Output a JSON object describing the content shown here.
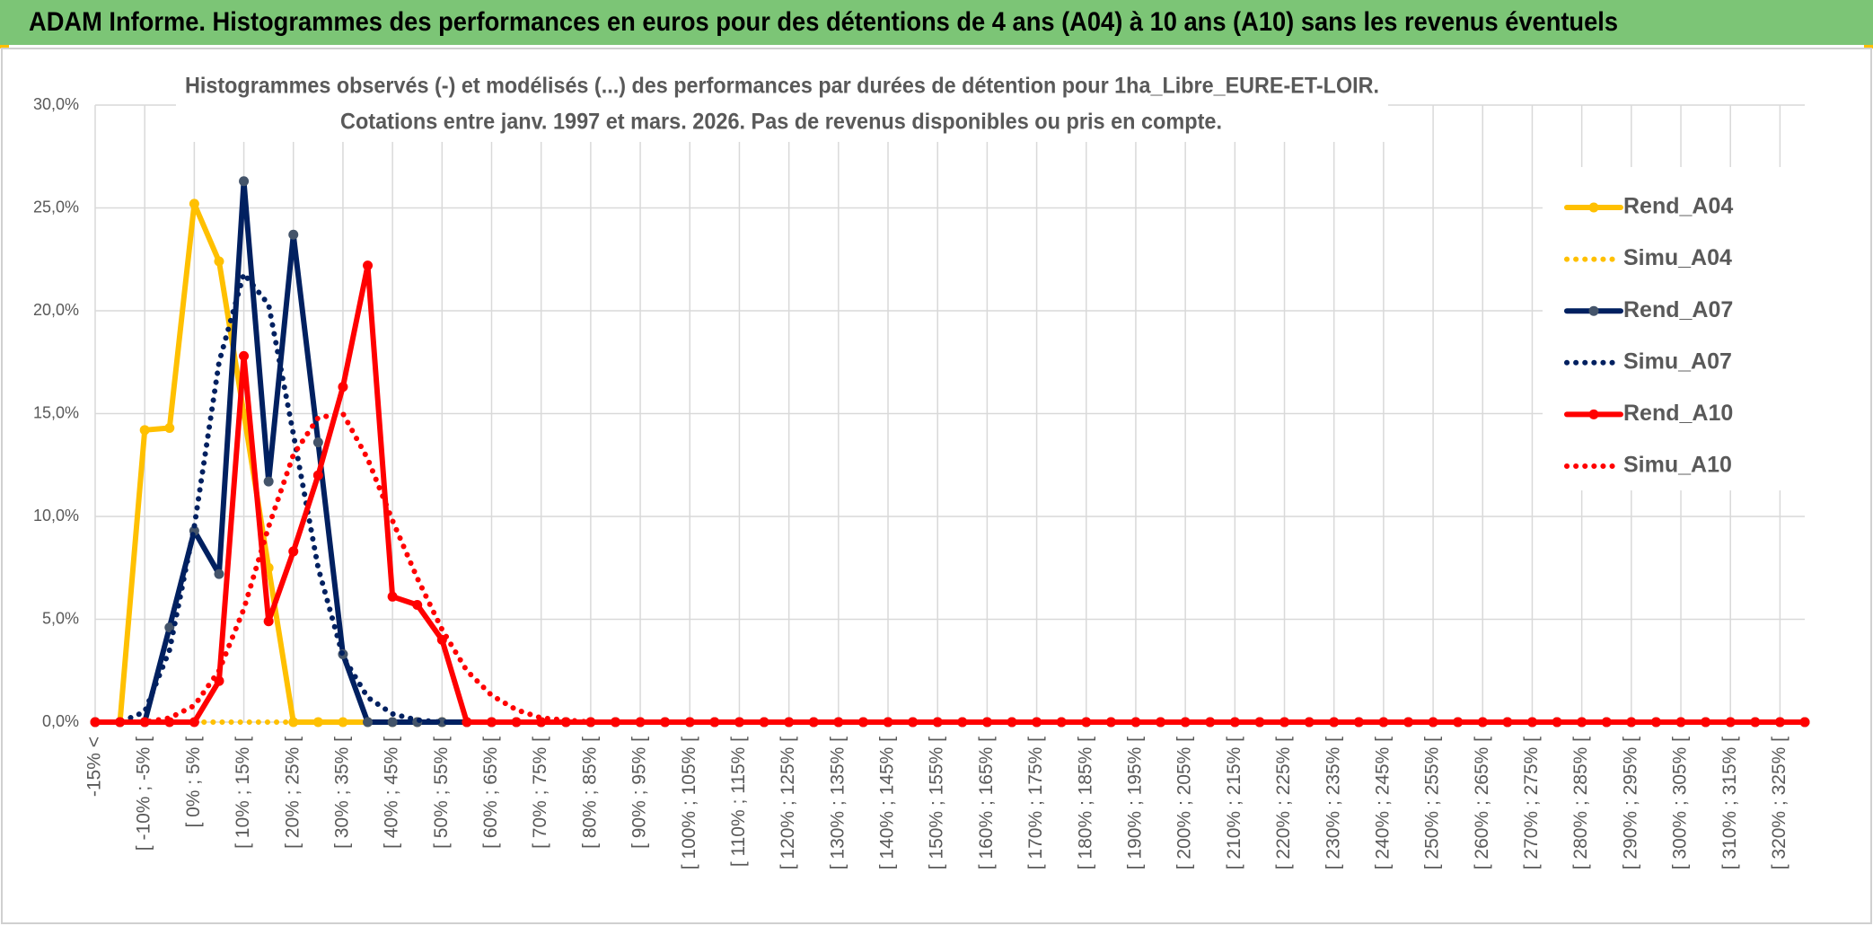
{
  "header": {
    "title": "ADAM Informe. Histogrammes des performances en euros pour des détentions de 4 ans (A04) à 10 ans (A10) sans les revenus éventuels"
  },
  "chart_data": {
    "type": "line",
    "title": [
      "Histogrammes observés (-) et modélisés (...) des performances par durées de détention pour 1ha_Libre_EURE-ET-LOIR.",
      "Cotations entre janv. 1997 et mars. 2026. Pas de revenus disponibles ou pris en compte."
    ],
    "categories": [
      "-15% <",
      null,
      "[ -10% ; -5% [",
      null,
      "[ 0% ; 5% [",
      null,
      "[ 10% ; 15% [",
      null,
      "[ 20% ; 25% [",
      null,
      "[ 30% ; 35% [",
      null,
      "[ 40% ; 45% [",
      null,
      "[ 50% ; 55% [",
      null,
      "[ 60% ; 65% [",
      null,
      "[ 70% ; 75% [",
      null,
      "[ 80% ; 85% [",
      null,
      "[ 90% ; 95% [",
      null,
      "[ 100% ; 105% [",
      null,
      "[ 110% ; 115% [",
      null,
      "[ 120% ; 125% [",
      null,
      "[ 130% ; 135% [",
      null,
      "[ 140% ; 145% [",
      null,
      "[ 150% ; 155% [",
      null,
      "[ 160% ; 165% [",
      null,
      "[ 170% ; 175% [",
      null,
      "[ 180% ; 185% [",
      null,
      "[ 190% ; 195% [",
      null,
      "[ 200% ; 205% [",
      null,
      "[ 210% ; 215% [",
      null,
      "[ 220% ; 225% [",
      null,
      "[ 230% ; 235% [",
      null,
      "[ 240% ; 245% [",
      null,
      "[ 250% ; 255% [",
      null,
      "[ 260% ; 265% [",
      null,
      "[ 270% ; 275% [",
      null,
      "[ 280% ; 285% [",
      null,
      "[ 290% ; 295% [",
      null,
      "[ 300% ; 305% [",
      null,
      "[ 310% ; 315% [",
      null,
      "[ 320% ; 325% [",
      null
    ],
    "series": [
      {
        "name": "Rend_A04",
        "color": "#FFC000",
        "line_style": "solid",
        "marker": true,
        "values": [
          0,
          0,
          14.2,
          14.3,
          25.2,
          22.4,
          15,
          7.5,
          0,
          0,
          0,
          0,
          0,
          0,
          0,
          0,
          0,
          0,
          0,
          0,
          0,
          0,
          0,
          0,
          0,
          0,
          0,
          0,
          0,
          0,
          0,
          0,
          0,
          0,
          0,
          0,
          0,
          0,
          0,
          0,
          0,
          0,
          0,
          0,
          0,
          0,
          0,
          0,
          0,
          0,
          0,
          0,
          0,
          0,
          0,
          0,
          0,
          0,
          0,
          0,
          0,
          0,
          0,
          0,
          0,
          0,
          0,
          0,
          0,
          0
        ]
      },
      {
        "name": "Simu_A04",
        "color": "#FFC000",
        "line_style": "dotted",
        "marker": false,
        "values": [
          0,
          0,
          0,
          0,
          0,
          0,
          0,
          0,
          0,
          0,
          0,
          0,
          0,
          0,
          0,
          0,
          0,
          0,
          0,
          0,
          0,
          0,
          0,
          0,
          0,
          0,
          0,
          0,
          0,
          0,
          0,
          0,
          0,
          0,
          0,
          0,
          0,
          0,
          0,
          0,
          0,
          0,
          0,
          0,
          0,
          0,
          0,
          0,
          0,
          0,
          0,
          0,
          0,
          0,
          0,
          0,
          0,
          0,
          0,
          0,
          0,
          0,
          0,
          0,
          0,
          0,
          0,
          0,
          0,
          0
        ]
      },
      {
        "name": "Rend_A07",
        "color": "#002060",
        "marker_color": "#44546A",
        "line_style": "solid",
        "marker": true,
        "values": [
          0,
          0,
          0,
          4.6,
          9.3,
          7.2,
          26.3,
          11.7,
          23.7,
          13.6,
          3.3,
          0,
          0,
          0,
          0,
          0,
          0,
          0,
          0,
          0,
          0,
          0,
          0,
          0,
          0,
          0,
          0,
          0,
          0,
          0,
          0,
          0,
          0,
          0,
          0,
          0,
          0,
          0,
          0,
          0,
          0,
          0,
          0,
          0,
          0,
          0,
          0,
          0,
          0,
          0,
          0,
          0,
          0,
          0,
          0,
          0,
          0,
          0,
          0,
          0,
          0,
          0,
          0,
          0,
          0,
          0,
          0,
          0,
          0,
          0
        ]
      },
      {
        "name": "Simu_A07",
        "color": "#002060",
        "line_style": "dotted",
        "marker": false,
        "values": [
          0,
          0,
          0.5,
          3.5,
          9.5,
          17.5,
          21.8,
          20.3,
          14,
          7.5,
          3.2,
          1.2,
          0.4,
          0.1,
          0,
          0,
          0,
          0,
          0,
          0,
          0,
          0,
          0,
          0,
          0,
          0,
          0,
          0,
          0,
          0,
          0,
          0,
          0,
          0,
          0,
          0,
          0,
          0,
          0,
          0,
          0,
          0,
          0,
          0,
          0,
          0,
          0,
          0,
          0,
          0,
          0,
          0,
          0,
          0,
          0,
          0,
          0,
          0,
          0,
          0,
          0,
          0,
          0,
          0,
          0,
          0,
          0,
          0,
          0,
          0
        ]
      },
      {
        "name": "Rend_A10",
        "color": "#FF0000",
        "line_style": "solid",
        "marker": true,
        "values": [
          0,
          0,
          0,
          0,
          0,
          2,
          17.8,
          4.9,
          8.3,
          12,
          16.3,
          22.2,
          6.1,
          5.7,
          4,
          0,
          0,
          0,
          0,
          0,
          0,
          0,
          0,
          0,
          0,
          0,
          0,
          0,
          0,
          0,
          0,
          0,
          0,
          0,
          0,
          0,
          0,
          0,
          0,
          0,
          0,
          0,
          0,
          0,
          0,
          0,
          0,
          0,
          0,
          0,
          0,
          0,
          0,
          0,
          0,
          0,
          0,
          0,
          0,
          0,
          0,
          0,
          0,
          0,
          0,
          0,
          0,
          0,
          0,
          0
        ]
      },
      {
        "name": "Simu_A10",
        "color": "#FF0000",
        "line_style": "dotted",
        "marker": false,
        "values": [
          0,
          0,
          0,
          0.2,
          0.8,
          2.5,
          5.5,
          9.5,
          13,
          14.8,
          15,
          12.8,
          9.8,
          7,
          4.5,
          2.5,
          1.3,
          0.6,
          0.2,
          0.1,
          0,
          0,
          0,
          0,
          0,
          0,
          0,
          0,
          0,
          0,
          0,
          0,
          0,
          0,
          0,
          0,
          0,
          0,
          0,
          0,
          0,
          0,
          0,
          0,
          0,
          0,
          0,
          0,
          0,
          0,
          0,
          0,
          0,
          0,
          0,
          0,
          0,
          0,
          0,
          0,
          0,
          0,
          0,
          0,
          0,
          0,
          0,
          0,
          0,
          0
        ]
      }
    ],
    "ylim": [
      0,
      30
    ],
    "yticks": [
      {
        "value": 0,
        "label": "0,0%"
      },
      {
        "value": 5,
        "label": "5,0%"
      },
      {
        "value": 10,
        "label": "10,0%"
      },
      {
        "value": 15,
        "label": "15,0%"
      },
      {
        "value": 20,
        "label": "20,0%"
      },
      {
        "value": 25,
        "label": "25,0%"
      },
      {
        "value": 30,
        "label": "30,0%"
      }
    ],
    "grid": true,
    "xgrid": true,
    "legend": "right"
  }
}
